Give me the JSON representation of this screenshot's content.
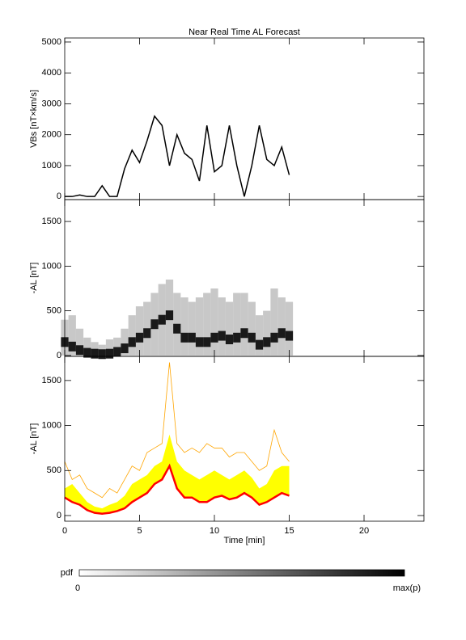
{
  "title": "Near Real Time AL Forecast",
  "chart_data": [
    {
      "type": "line",
      "ylabel": "VBs [nT×km/s]",
      "x": [
        0,
        0.5,
        1,
        1.5,
        2,
        2.5,
        3,
        3.5,
        4,
        4.5,
        5,
        5.5,
        6,
        6.5,
        7,
        7.5,
        8,
        8.5,
        9,
        9.5,
        10,
        10.5,
        11,
        11.5,
        12,
        12.5,
        13,
        13.5,
        14,
        14.5,
        15
      ],
      "values": [
        0,
        0,
        50,
        0,
        0,
        350,
        0,
        0,
        900,
        1500,
        1100,
        1800,
        2600,
        2300,
        1000,
        2000,
        1400,
        1200,
        500,
        2300,
        800,
        1000,
        2300,
        1000,
        0,
        1000,
        2300,
        1200,
        1000,
        1600,
        700
      ],
      "color": "#000000",
      "xlim": [
        0,
        24
      ],
      "xticks": [
        0,
        5,
        10,
        15,
        20
      ],
      "ylim": [
        -100,
        5130
      ],
      "yticks": [
        0,
        1000,
        2000,
        3000,
        4000,
        5000
      ]
    },
    {
      "type": "density",
      "ylabel": "-AL [nT]",
      "x": [
        0,
        0.5,
        1,
        1.5,
        2,
        2.5,
        3,
        3.5,
        4,
        4.5,
        5,
        5.5,
        6,
        6.5,
        7,
        7.5,
        8,
        8.5,
        9,
        9.5,
        10,
        10.5,
        11,
        11.5,
        12,
        12.5,
        13,
        13.5,
        14,
        14.5,
        15
      ],
      "low": [
        0,
        0,
        0,
        0,
        0,
        0,
        0,
        0,
        0,
        0,
        0,
        0,
        0,
        0,
        0,
        0,
        0,
        0,
        0,
        0,
        0,
        0,
        0,
        0,
        0,
        0,
        0,
        0,
        0,
        0,
        0
      ],
      "high": [
        400,
        450,
        300,
        200,
        150,
        120,
        180,
        200,
        300,
        450,
        550,
        600,
        700,
        800,
        850,
        700,
        650,
        600,
        650,
        700,
        750,
        650,
        600,
        700,
        700,
        600,
        450,
        500,
        750,
        650,
        600
      ],
      "peak": [
        150,
        100,
        60,
        30,
        20,
        15,
        20,
        40,
        80,
        150,
        200,
        250,
        350,
        400,
        450,
        300,
        200,
        200,
        150,
        150,
        200,
        220,
        180,
        200,
        250,
        200,
        120,
        150,
        200,
        250,
        220
      ],
      "xlim": [
        0,
        24
      ],
      "xticks": [
        0,
        5,
        10,
        15,
        20
      ],
      "ylim": [
        -10,
        1745
      ],
      "yticks": [
        0,
        500,
        1000,
        1500
      ]
    },
    {
      "type": "band",
      "ylabel": "-AL [nT]",
      "xlabel": "Time [min]",
      "xtick_labels": true,
      "x": [
        0,
        0.5,
        1,
        1.5,
        2,
        2.5,
        3,
        3.5,
        4,
        4.5,
        5,
        5.5,
        6,
        6.5,
        7,
        7.5,
        8,
        8.5,
        9,
        9.5,
        10,
        10.5,
        11,
        11.5,
        12,
        12.5,
        13,
        13.5,
        14,
        14.5,
        15
      ],
      "series": [
        {
          "color": "#ff0000",
          "values": [
            200,
            150,
            120,
            60,
            30,
            20,
            30,
            50,
            80,
            150,
            200,
            250,
            350,
            400,
            550,
            300,
            200,
            200,
            150,
            150,
            200,
            220,
            180,
            200,
            250,
            200,
            120,
            150,
            200,
            250,
            220
          ]
        },
        {
          "color": "#ffff00",
          "values": [
            300,
            350,
            250,
            150,
            100,
            80,
            120,
            150,
            220,
            350,
            400,
            450,
            550,
            600,
            900,
            600,
            500,
            450,
            400,
            450,
            500,
            450,
            400,
            450,
            500,
            420,
            300,
            350,
            500,
            550,
            550
          ]
        },
        {
          "color": "#ffa500",
          "values": [
            600,
            400,
            450,
            300,
            250,
            200,
            300,
            250,
            400,
            550,
            500,
            700,
            750,
            800,
            1700,
            800,
            700,
            750,
            700,
            800,
            750,
            750,
            650,
            700,
            700,
            600,
            500,
            550,
            950,
            700,
            600
          ]
        }
      ],
      "xlim": [
        0,
        24
      ],
      "xticks": [
        0,
        5,
        10,
        15,
        20
      ],
      "ylim": [
        -63,
        1768
      ],
      "yticks": [
        0,
        500,
        1000,
        1500
      ]
    }
  ],
  "colorbar": {
    "label": "pdf",
    "min_label": "0",
    "max_label": "max(p)"
  }
}
